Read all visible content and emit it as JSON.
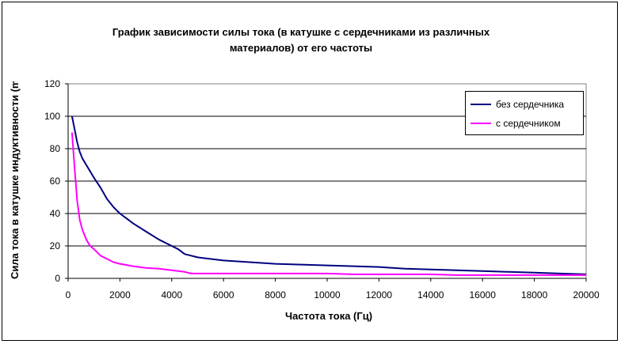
{
  "chart_data": {
    "type": "line",
    "title": "График зависимости силы тока (в катушке с сердечниками из различных материалов) от его частоты",
    "xlabel": "Частота тока (Гц)",
    "ylabel": "Сила тока в катушке индуктивности (mA)",
    "xlim": [
      0,
      20000
    ],
    "ylim": [
      0,
      120
    ],
    "x_ticks": [
      "0",
      "2000",
      "4000",
      "6000",
      "8000",
      "10000",
      "12000",
      "14000",
      "16000",
      "18000",
      "20000"
    ],
    "y_ticks": [
      "0",
      "20",
      "40",
      "60",
      "80",
      "100",
      "120"
    ],
    "grid": "horizontal",
    "legend_position": "top-right",
    "series": [
      {
        "name": "без сердечника",
        "color": "#000080",
        "x": [
          150,
          250,
          350,
          450,
          550,
          700,
          850,
          1000,
          1250,
          1500,
          1750,
          2000,
          2250,
          2500,
          3000,
          3500,
          4000,
          4250,
          4500,
          4750,
          5000,
          6000,
          7000,
          8000,
          9000,
          10000,
          11000,
          12000,
          13000,
          14000,
          15000,
          16000,
          17000,
          18000,
          19000,
          20000
        ],
        "y": [
          100,
          92,
          84,
          78,
          74,
          70,
          66,
          62,
          56,
          49,
          44,
          40,
          37,
          34,
          29,
          24,
          20,
          18,
          15,
          14,
          13,
          11,
          10,
          9,
          8.5,
          8,
          7.5,
          7,
          6,
          5.5,
          5,
          4.5,
          4,
          3.5,
          3,
          2.5
        ]
      },
      {
        "name": "с сердечником",
        "color": "#FF00FF",
        "x": [
          150,
          250,
          350,
          450,
          550,
          700,
          850,
          1000,
          1250,
          1500,
          1750,
          2000,
          2500,
          3000,
          3500,
          4000,
          4500,
          4750,
          5000,
          6000,
          7000,
          8000,
          9000,
          10000,
          11000,
          12000,
          13000,
          14000,
          15000,
          16000,
          17000,
          18000,
          19000,
          20000
        ],
        "y": [
          90,
          68,
          48,
          36,
          30,
          24,
          20,
          18,
          14,
          12,
          10,
          9,
          7.5,
          6.5,
          6,
          5,
          4,
          3,
          3,
          3,
          3,
          3,
          3,
          3,
          2.5,
          2.5,
          2.5,
          2.5,
          2,
          2,
          2,
          2,
          2,
          2
        ]
      }
    ]
  }
}
